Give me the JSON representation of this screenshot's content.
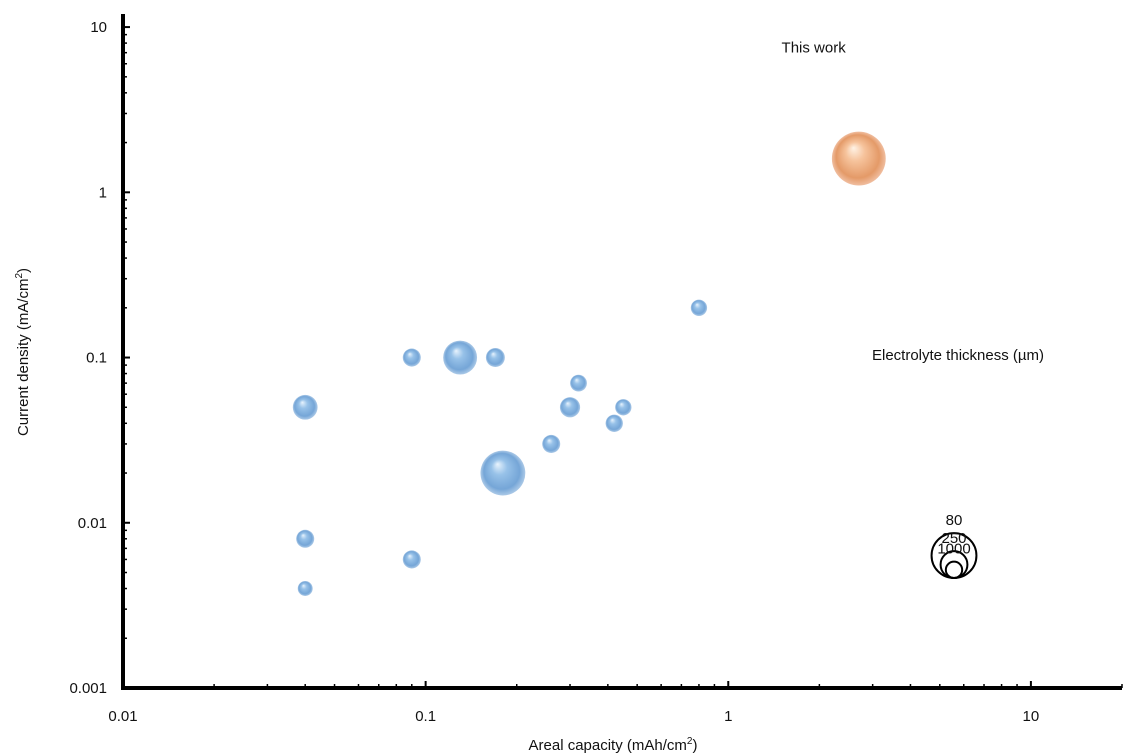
{
  "chart_data": {
    "type": "scatter",
    "subtype": "bubble",
    "xlabel": "Areal capacity (mAh/cm",
    "xlabel_sup": "2",
    "xlabel_end": ")",
    "ylabel": "Current density (mA/cm",
    "ylabel_sup": "2",
    "ylabel_end": ")",
    "x_scale": "log",
    "y_scale": "log",
    "xlim": [
      0.01,
      20
    ],
    "ylim": [
      0.001,
      12
    ],
    "x_ticks": [
      0.01,
      0.1,
      1,
      10
    ],
    "x_tick_labels": [
      "0.01",
      "0.1",
      "1",
      "10"
    ],
    "y_ticks": [
      0.001,
      0.01,
      0.1,
      1,
      10
    ],
    "y_tick_labels": [
      "0.001",
      "0.01",
      "0.1",
      "1",
      "10"
    ],
    "grid": false,
    "bubble_size_meaning": "Electrolyte thickness (µm)",
    "series": [
      {
        "color": "#6aa2d8",
        "points": [
          {
            "x": 0.04,
            "y": 0.05,
            "thickness": 300
          },
          {
            "x": 0.04,
            "y": 0.008,
            "thickness": 700
          },
          {
            "x": 0.04,
            "y": 0.004,
            "thickness": 1500
          },
          {
            "x": 0.09,
            "y": 0.006,
            "thickness": 700
          },
          {
            "x": 0.09,
            "y": 0.1,
            "thickness": 700
          },
          {
            "x": 0.13,
            "y": 0.1,
            "thickness": 150
          },
          {
            "x": 0.17,
            "y": 0.1,
            "thickness": 600
          },
          {
            "x": 0.18,
            "y": 0.02,
            "thickness": 80
          },
          {
            "x": 0.26,
            "y": 0.03,
            "thickness": 700
          },
          {
            "x": 0.3,
            "y": 0.05,
            "thickness": 500
          },
          {
            "x": 0.32,
            "y": 0.07,
            "thickness": 900
          },
          {
            "x": 0.42,
            "y": 0.04,
            "thickness": 800
          },
          {
            "x": 0.45,
            "y": 0.05,
            "thickness": 1000
          },
          {
            "x": 0.8,
            "y": 0.2,
            "thickness": 1000
          }
        ]
      },
      {
        "color": "#f0b284",
        "points": [
          {
            "x": 2.7,
            "y": 1.6,
            "thickness": 50
          }
        ]
      }
    ],
    "annotations": [
      {
        "text": "This work",
        "x": 1.5,
        "y": 7
      }
    ],
    "size_legend": {
      "title": "Electrolyte thickness (µm)",
      "entries": [
        {
          "label": "80",
          "thickness": 80
        },
        {
          "label": "250",
          "thickness": 250
        },
        {
          "label": "1000",
          "thickness": 1000
        }
      ],
      "placement": "right"
    }
  }
}
